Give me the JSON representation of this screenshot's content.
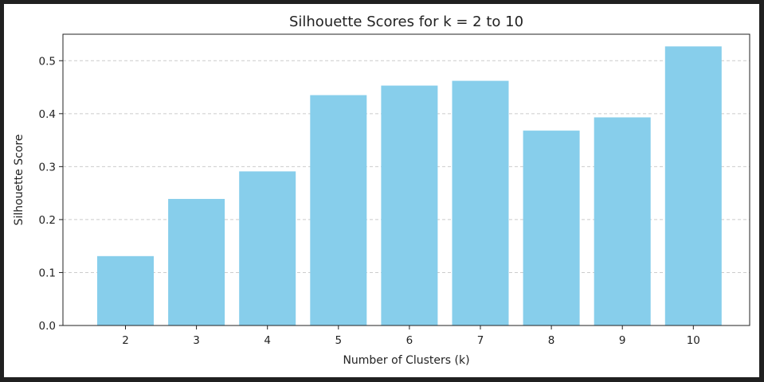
{
  "chart_data": {
    "type": "bar",
    "title": "Silhouette Scores for k = 2 to 10",
    "xlabel": "Number of Clusters (k)",
    "ylabel": "Silhouette Score",
    "categories": [
      "2",
      "3",
      "4",
      "5",
      "6",
      "7",
      "8",
      "9",
      "10"
    ],
    "values": [
      0.131,
      0.239,
      0.291,
      0.435,
      0.453,
      0.462,
      0.368,
      0.393,
      0.527
    ],
    "ylim": [
      0,
      0.55
    ],
    "yticks": [
      "0.0",
      "0.1",
      "0.2",
      "0.3",
      "0.4",
      "0.5"
    ],
    "grid": "y-dashed",
    "bar_color": "#87ceeb",
    "grid_color": "#cccccc"
  }
}
